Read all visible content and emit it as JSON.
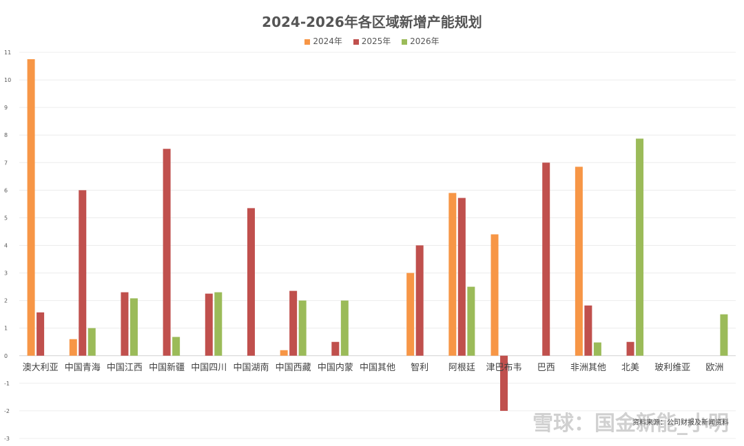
{
  "chart_data": {
    "type": "bar",
    "title": "2024-2026年各区域新增产能规划",
    "categories": [
      "澳大利亚",
      "中国青海",
      "中国江西",
      "中国新疆",
      "中国四川",
      "中国湖南",
      "中国西藏",
      "中国内蒙",
      "中国其他",
      "智利",
      "阿根廷",
      "津巴布韦",
      "巴西",
      "非洲其他",
      "北美",
      "玻利维亚",
      "欧洲"
    ],
    "series": [
      {
        "name": "2024年",
        "color": "#F79646",
        "values": [
          10.75,
          0.6,
          null,
          null,
          null,
          null,
          0.2,
          null,
          null,
          3.0,
          5.9,
          4.4,
          null,
          6.85,
          null,
          null,
          null
        ]
      },
      {
        "name": "2025年",
        "color": "#C0504D",
        "values": [
          1.57,
          6.0,
          2.3,
          7.5,
          2.25,
          5.35,
          2.35,
          0.5,
          null,
          4.0,
          5.72,
          -2.0,
          7.0,
          1.82,
          0.5,
          null,
          null
        ]
      },
      {
        "name": "2026年",
        "color": "#9BBB59",
        "values": [
          null,
          1.0,
          2.08,
          0.68,
          2.3,
          null,
          2.0,
          2.0,
          null,
          null,
          2.5,
          null,
          null,
          0.48,
          7.87,
          null,
          1.5
        ]
      }
    ],
    "ylim": [
      -3,
      11
    ],
    "yticks": [
      -3,
      -2,
      -1,
      0,
      1,
      2,
      3,
      4,
      5,
      6,
      7,
      8,
      9,
      10,
      11
    ],
    "grid": true,
    "legend_position": "top-center"
  },
  "watermark": "雪球：国金新能_小明",
  "source_note": "资料来源：公司财报及新闻资料"
}
